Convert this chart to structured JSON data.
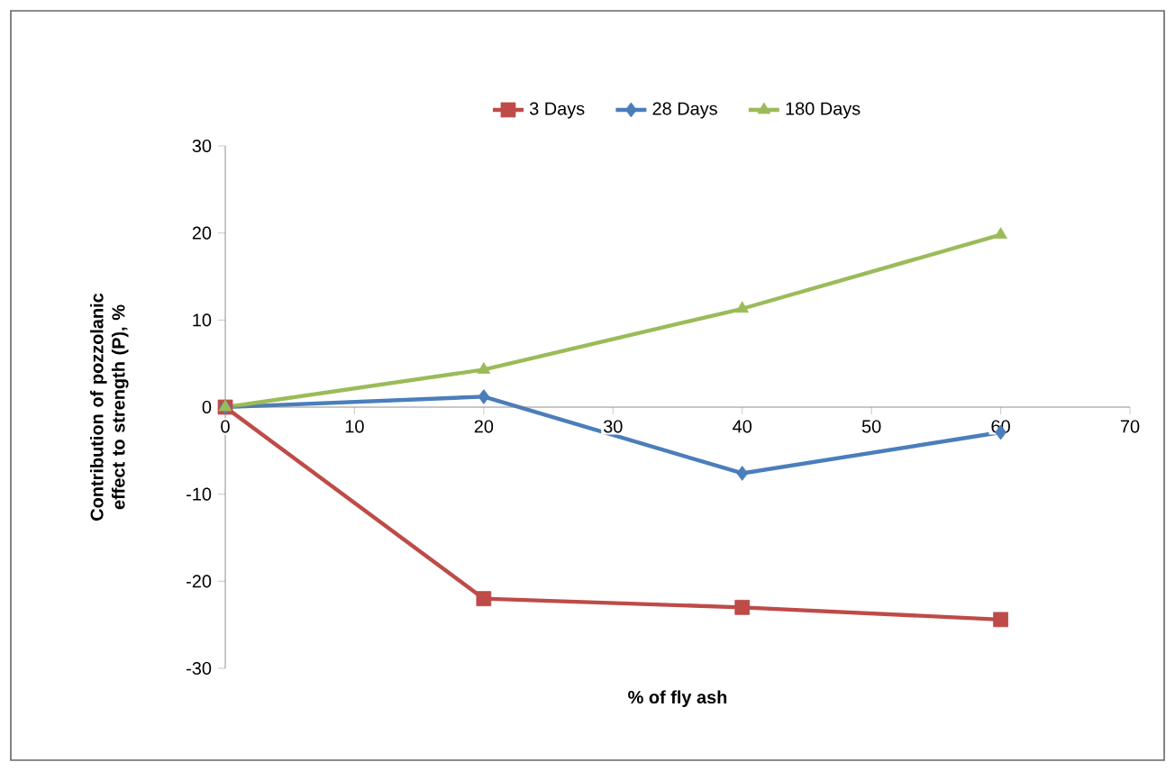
{
  "chart_data": {
    "type": "line",
    "xlabel": "% of fly ash",
    "ylabel": "Contribution of pozzolanic  effect to strength (P),  %",
    "x": [
      0,
      20,
      40,
      60
    ],
    "series": [
      {
        "name": "3 Days",
        "color": "#be4b48",
        "marker": "square",
        "values": [
          0,
          -22,
          -23,
          -24.4
        ]
      },
      {
        "name": "28 Days",
        "color": "#4a7ebb",
        "marker": "diamond",
        "values": [
          0,
          1.2,
          -7.6,
          -2.9
        ]
      },
      {
        "name": "180 Days",
        "color": "#9bbb59",
        "marker": "triangle",
        "values": [
          0,
          4.3,
          11.3,
          19.8
        ]
      }
    ],
    "xlim": [
      0,
      70
    ],
    "xticks": [
      0,
      10,
      20,
      30,
      40,
      50,
      60,
      70
    ],
    "ylim": [
      -30,
      30
    ],
    "yticks": [
      -30,
      -20,
      -10,
      0,
      10,
      20,
      30
    ],
    "grid": false,
    "legend": "top",
    "line_style": "solid"
  }
}
